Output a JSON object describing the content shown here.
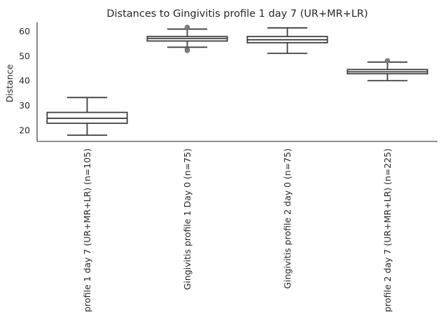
{
  "chart_data": {
    "type": "box",
    "title": "Distances to Gingivitis profile 1 day 7 (UR+MR+LR)",
    "xlabel": "",
    "ylabel": "Distance",
    "ylim": [
      15.5,
      63.5
    ],
    "yticks": [
      20,
      30,
      40,
      50,
      60
    ],
    "grid": false,
    "legend": "none",
    "box_color": "#ffffff",
    "line_color": "#3f3f3f",
    "flier_color": "#808080",
    "categories": [
      "profile 1 day 7 (UR+MR+LR) (n=105)",
      "Gingivitis profile 1 Day 0 (n=75)",
      "Gingivitis profile 2 day 0 (n=75)",
      "profile 2 day 7 (UR+MR+LR) (n=225)"
    ],
    "boxes": [
      {
        "whisker_low": 18.0,
        "q1": 22.8,
        "median": 24.8,
        "q3": 27.2,
        "whisker_high": 33.2,
        "outliers": []
      },
      {
        "whisker_low": 53.5,
        "q1": 56.0,
        "median": 57.0,
        "q3": 57.8,
        "whisker_high": 60.8,
        "outliers": [
          61.5,
          52.5,
          52.2
        ]
      },
      {
        "whisker_low": 51.0,
        "q1": 55.3,
        "median": 56.5,
        "q3": 57.8,
        "whisker_high": 61.3,
        "outliers": []
      },
      {
        "whisker_low": 40.0,
        "q1": 42.8,
        "median": 43.6,
        "q3": 44.5,
        "whisker_high": 47.5,
        "outliers": [
          48.0
        ]
      }
    ]
  }
}
